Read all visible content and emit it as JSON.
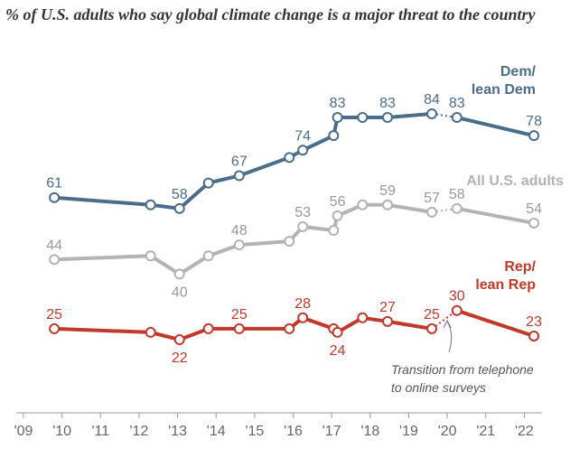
{
  "title": "% of U.S. adults who say global climate change is a major threat to the country",
  "chart_data": {
    "type": "line",
    "title": "% of U.S. adults who say global climate change is a major threat to the country",
    "xlabel": "",
    "ylabel": "",
    "xlim": [
      2009,
      2022.6
    ],
    "ylim": [
      17,
      90
    ],
    "grid": false,
    "x_ticks": [
      2009,
      2010,
      2011,
      2012,
      2013,
      2014,
      2015,
      2016,
      2017,
      2018,
      2019,
      2020,
      2021,
      2022
    ],
    "x_tick_labels": [
      "'09",
      "'10",
      "'11",
      "'12",
      "'13",
      "'14",
      "'15",
      "'16",
      "'17",
      "'18",
      "'19",
      "'20",
      "'21",
      "'22"
    ],
    "series": [
      {
        "name": "Dem/ lean Dem",
        "label_lines": [
          "Dem/",
          "lean Dem"
        ],
        "color": "#4a6d8c",
        "x": [
          2009.8,
          2012.3,
          2013.05,
          2013.8,
          2014.6,
          2015.9,
          2016.25,
          2017.05,
          2017.15,
          2017.8,
          2018.45,
          2019.6,
          2020.25,
          2022.25
        ],
        "values": [
          61,
          59,
          58,
          65,
          67,
          72,
          74,
          78,
          83,
          83,
          83,
          84,
          83,
          78
        ],
        "labels": [
          "61",
          null,
          "58",
          null,
          "67",
          null,
          "74",
          null,
          "83",
          null,
          "83",
          "84",
          "83",
          "78"
        ]
      },
      {
        "name": "All U.S. adults",
        "label_lines": [
          "All U.S. adults"
        ],
        "color": "#b3b3b3",
        "x": [
          2009.8,
          2012.3,
          2013.05,
          2013.8,
          2014.6,
          2015.9,
          2016.25,
          2017.05,
          2017.15,
          2017.8,
          2018.45,
          2019.6,
          2020.25,
          2022.25
        ],
        "values": [
          44,
          45,
          40,
          45,
          48,
          49,
          53,
          52,
          56,
          59,
          59,
          57,
          58,
          54
        ],
        "labels": [
          "44",
          null,
          "40",
          null,
          "48",
          null,
          "53",
          null,
          "56",
          null,
          "59",
          "57",
          "58",
          "54"
        ]
      },
      {
        "name": "Rep/ lean Rep",
        "label_lines": [
          "Rep/",
          "lean Rep"
        ],
        "color": "#c0392b",
        "x": [
          2009.8,
          2012.3,
          2013.05,
          2013.8,
          2014.6,
          2015.9,
          2016.25,
          2017.05,
          2017.15,
          2017.8,
          2018.45,
          2019.6,
          2020.25,
          2022.25
        ],
        "values": [
          25,
          24,
          22,
          25,
          25,
          25,
          28,
          25,
          24,
          28,
          27,
          25,
          30,
          23
        ],
        "labels": [
          "25",
          null,
          "22",
          null,
          "25",
          null,
          "28",
          null,
          "24",
          null,
          "27",
          "25",
          "30",
          "23"
        ]
      }
    ],
    "dotted_segment": {
      "from_x": 2019.6,
      "to_x": 2020.25
    },
    "annotation": {
      "lines": [
        "Transition from telephone",
        "to online surveys"
      ],
      "x": 2020.0,
      "y": 26
    }
  }
}
